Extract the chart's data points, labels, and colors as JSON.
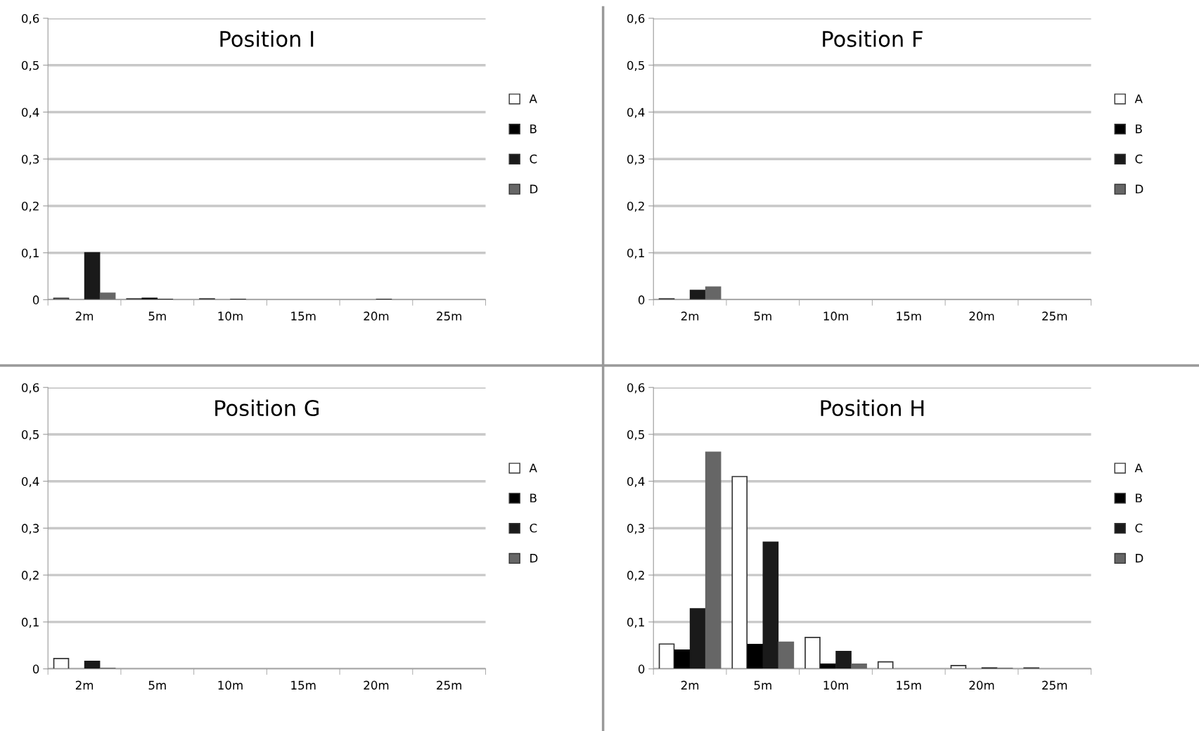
{
  "chart_data": [
    {
      "type": "bar",
      "title": "Position I",
      "categories": [
        "2m",
        "5m",
        "10m",
        "15m",
        "20m",
        "25m"
      ],
      "series": [
        {
          "name": "A",
          "color": "#ffffff",
          "values": [
            0.003,
            0.002,
            0.002,
            0,
            0,
            0
          ]
        },
        {
          "name": "B",
          "color": "#000000",
          "values": [
            0,
            0.003,
            0,
            0,
            0,
            0
          ]
        },
        {
          "name": "C",
          "color": "#1a1a1a",
          "values": [
            0.1,
            0.001,
            0.001,
            0,
            0.001,
            0
          ]
        },
        {
          "name": "D",
          "color": "#666666",
          "values": [
            0.014,
            0,
            0,
            0,
            0,
            0
          ]
        }
      ],
      "ylim": [
        0,
        0.6
      ],
      "yticks": [
        0,
        {
          "value": 0.1,
          "label": "0,1"
        },
        {
          "value": 0.2,
          "label": "0,2"
        },
        {
          "value": 0.3,
          "label": "0,3"
        },
        {
          "value": 0.4,
          "label": "0,4"
        },
        {
          "value": 0.5,
          "label": "0,5"
        },
        {
          "value": 0.6,
          "label": "0,6"
        }
      ],
      "grid": "y",
      "legend": "right"
    },
    {
      "type": "bar",
      "title": "Position F",
      "categories": [
        "2m",
        "5m",
        "10m",
        "15m",
        "20m",
        "25m"
      ],
      "series": [
        {
          "name": "A",
          "color": "#ffffff",
          "values": [
            0.002,
            0,
            0,
            0,
            0,
            0
          ]
        },
        {
          "name": "B",
          "color": "#000000",
          "values": [
            0,
            0,
            0,
            0,
            0,
            0
          ]
        },
        {
          "name": "C",
          "color": "#1a1a1a",
          "values": [
            0.02,
            0,
            0,
            0,
            0,
            0
          ]
        },
        {
          "name": "D",
          "color": "#666666",
          "values": [
            0.027,
            0,
            0,
            0,
            0,
            0
          ]
        }
      ],
      "ylim": [
        0,
        0.6
      ],
      "yticks": [
        0,
        {
          "value": 0.1,
          "label": "0,1"
        },
        {
          "value": 0.2,
          "label": "0,2"
        },
        {
          "value": 0.3,
          "label": "0,3"
        },
        {
          "value": 0.4,
          "label": "0,4"
        },
        {
          "value": 0.5,
          "label": "0,5"
        },
        {
          "value": 0.6,
          "label": "0,6"
        }
      ],
      "grid": "y",
      "legend": "right"
    },
    {
      "type": "bar",
      "title": "Position G",
      "categories": [
        "2m",
        "5m",
        "10m",
        "15m",
        "20m",
        "25m"
      ],
      "series": [
        {
          "name": "A",
          "color": "#ffffff",
          "values": [
            0.022,
            0,
            0,
            0,
            0,
            0
          ]
        },
        {
          "name": "B",
          "color": "#000000",
          "values": [
            0,
            0,
            0,
            0,
            0,
            0
          ]
        },
        {
          "name": "C",
          "color": "#1a1a1a",
          "values": [
            0.016,
            0,
            0,
            0,
            0,
            0
          ]
        },
        {
          "name": "D",
          "color": "#666666",
          "values": [
            0.001,
            0,
            0,
            0,
            0,
            0
          ]
        }
      ],
      "ylim": [
        0,
        0.6
      ],
      "yticks": [
        0,
        {
          "value": 0.1,
          "label": "0,1"
        },
        {
          "value": 0.2,
          "label": "0,2"
        },
        {
          "value": 0.3,
          "label": "0,3"
        },
        {
          "value": 0.4,
          "label": "0,4"
        },
        {
          "value": 0.5,
          "label": "0,5"
        },
        {
          "value": 0.6,
          "label": "0,6"
        }
      ],
      "grid": "y",
      "legend": "right"
    },
    {
      "type": "bar",
      "title": "Position H",
      "categories": [
        "2m",
        "5m",
        "10m",
        "15m",
        "20m",
        "25m"
      ],
      "series": [
        {
          "name": "A",
          "color": "#ffffff",
          "values": [
            0.053,
            0.41,
            0.067,
            0.015,
            0.007,
            0.002
          ]
        },
        {
          "name": "B",
          "color": "#000000",
          "values": [
            0.04,
            0.052,
            0.01,
            0,
            0,
            0
          ]
        },
        {
          "name": "C",
          "color": "#1a1a1a",
          "values": [
            0.128,
            0.27,
            0.037,
            0,
            0.002,
            0
          ]
        },
        {
          "name": "D",
          "color": "#666666",
          "values": [
            0.462,
            0.057,
            0.01,
            0,
            0.001,
            0
          ]
        }
      ],
      "ylim": [
        0,
        0.6
      ],
      "yticks": [
        0,
        {
          "value": 0.1,
          "label": "0,1"
        },
        {
          "value": 0.2,
          "label": "0,2"
        },
        {
          "value": 0.3,
          "label": "0,3"
        },
        {
          "value": 0.4,
          "label": "0,4"
        },
        {
          "value": 0.5,
          "label": "0,5"
        },
        {
          "value": 0.6,
          "label": "0,6"
        }
      ],
      "grid": "y",
      "legend": "right"
    }
  ]
}
